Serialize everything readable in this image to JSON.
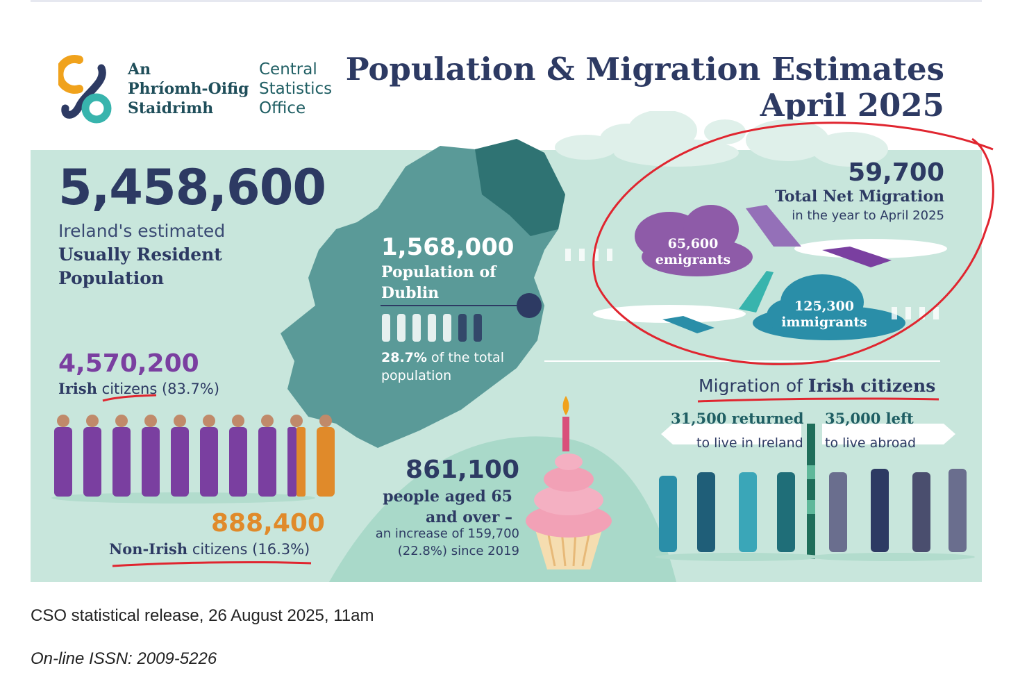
{
  "logo": {
    "irish_name": "An\nPhríomh-Oifig\nStaidrimh",
    "english_name": "Central\nStatistics\nOffice"
  },
  "title": {
    "line1": "Population & Migration Estimates",
    "line2": "April 2025"
  },
  "population": {
    "total": "5,458,600",
    "label_line1": "Ireland's estimated",
    "label_line2": "Usually Resident Population"
  },
  "irish": {
    "number": "4,570,200",
    "label_bold": "Irish",
    "label_rest": " citizens (83.7%)"
  },
  "non_irish": {
    "number": "888,400",
    "label_bold": "Non-Irish",
    "label_rest": " citizens (16.3%)"
  },
  "dublin": {
    "number": "1,568,000",
    "label": "Population of Dublin",
    "pct_bold": "28.7%",
    "pct_rest": " of the total population"
  },
  "older": {
    "number": "861,100",
    "label": "people aged 65 and over –",
    "sub": "an increase of 159,700 (22.8%) since 2019"
  },
  "net_migration": {
    "number": "59,700",
    "label": "Total Net Migration",
    "sub": "in the year to April 2025"
  },
  "emigrants": {
    "number": "65,600",
    "label": "emigrants"
  },
  "immigrants": {
    "number": "125,300",
    "label": "immigrants"
  },
  "irish_migration": {
    "title_plain": "Migration of ",
    "title_bold": "Irish citizens",
    "returned": "31,500 returned",
    "returned_sub": "to live in Ireland",
    "left": "35,000 left",
    "left_sub": "to live abroad"
  },
  "footer": {
    "release": "CSO statistical release, 26 August 2025, 11am",
    "issn": "On-line ISSN: 2009-5226"
  },
  "colors": {
    "navy": "#2d3a63",
    "panel": "#c8e6dc",
    "teal_map": "#4e8e8c",
    "purple": "#7a3fa0",
    "orange": "#e08a2a",
    "annotation_red": "#e0252f"
  }
}
